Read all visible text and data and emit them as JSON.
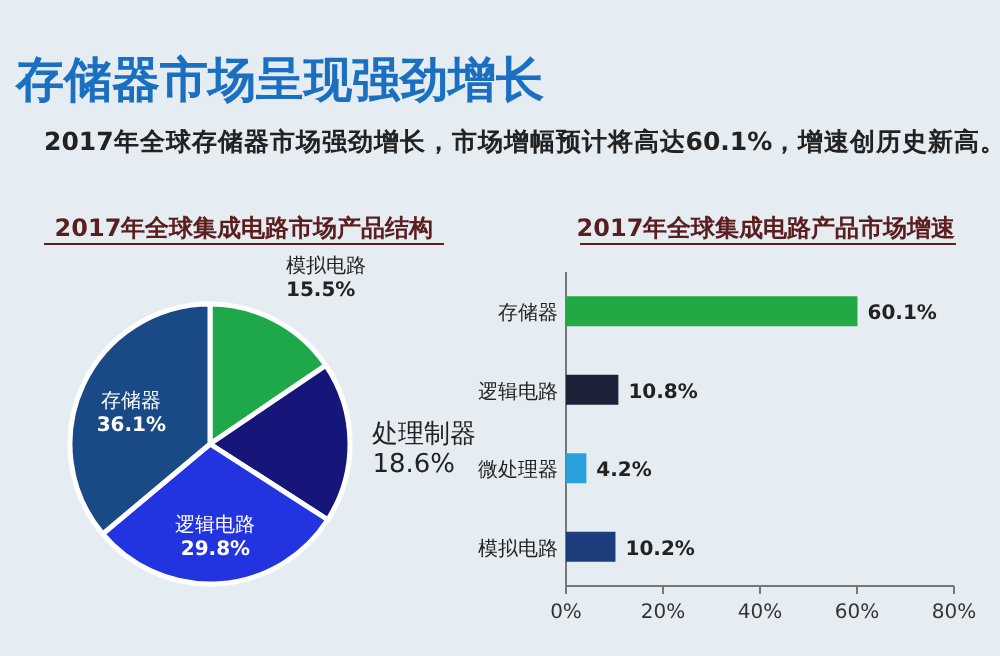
{
  "chart_data": [
    {
      "type": "other",
      "title": "存储器市场呈现强劲增长",
      "subtitle": "2017年全球存储器市场强劲增长，市场增幅预计将高达60.1%，增速创历史新高。"
    },
    {
      "type": "pie",
      "title": "2017年全球集成电路市场产品结构",
      "categories": [
        "模拟电路",
        "处理制器",
        "逻辑电路",
        "存储器"
      ],
      "values": [
        15.5,
        18.6,
        29.8,
        36.1
      ],
      "value_labels": [
        "15.5%",
        "18.6%",
        "29.8%",
        "36.1%"
      ],
      "colors": [
        "#1fa84a",
        "#15157a",
        "#2233e0",
        "#1a4a86"
      ]
    },
    {
      "type": "bar",
      "orientation": "horizontal",
      "title": "2017年全球集成电路产品市场增速",
      "categories": [
        "存储器",
        "逻辑电路",
        "微处理器",
        "模拟电路"
      ],
      "values": [
        60.1,
        10.8,
        4.2,
        10.2
      ],
      "value_labels": [
        "60.1%",
        "10.8%",
        "4.2%",
        "10.2%"
      ],
      "colors": [
        "#22a844",
        "#1e2238",
        "#2aa0dc",
        "#1c3c7c"
      ],
      "xlim": [
        0,
        80
      ],
      "xticks": [
        {
          "value": 0,
          "label": "0%"
        },
        {
          "value": 20,
          "label": "20%"
        },
        {
          "value": 40,
          "label": "40%"
        },
        {
          "value": 60,
          "label": "60%"
        },
        {
          "value": 80,
          "label": "80%"
        }
      ]
    }
  ]
}
